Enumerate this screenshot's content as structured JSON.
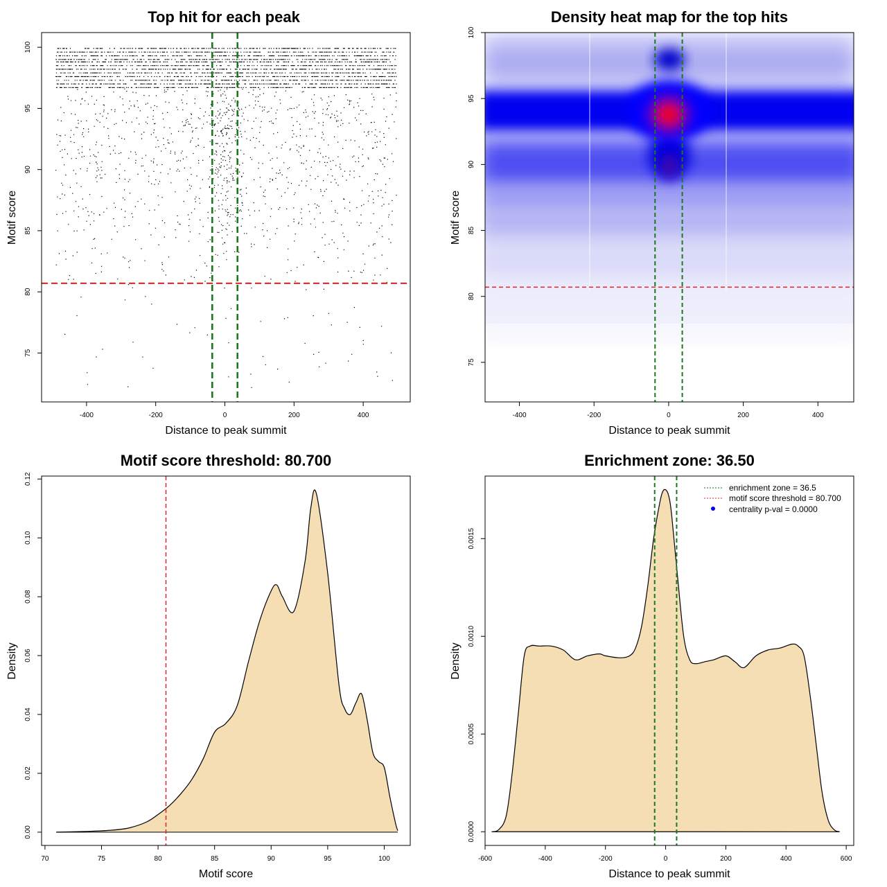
{
  "panels": {
    "scatter": {
      "title": "Top hit for each peak",
      "xlabel": "Distance to peak summit",
      "ylabel": "Motif score"
    },
    "heatmap": {
      "title": "Density heat map for the top hits",
      "xlabel": "Distance to peak summit",
      "ylabel": "Motif score"
    },
    "score_density": {
      "title": "Motif score threshold: 80.700",
      "xlabel": "Motif score",
      "ylabel": "Density"
    },
    "distance_density": {
      "title": "Enrichment zone: 36.50",
      "xlabel": "Distance to peak summit",
      "ylabel": "Density"
    }
  },
  "legend": {
    "zone": "enrichment zone = 36.5",
    "threshold": "motif score threshold = 80.700",
    "pval": "centrality p-val = 0.0000"
  },
  "colors": {
    "threshold": "#d62728",
    "zone": "#1a7a1a",
    "fill": "#f5deb3",
    "blue": "#0000ff",
    "red": "#ff0000"
  },
  "chart_data": [
    {
      "id": "scatter",
      "type": "scatter",
      "title": "Top hit for each peak",
      "xlabel": "Distance to peak summit",
      "ylabel": "Motif score",
      "xlim": [
        -530,
        536
      ],
      "ylim": [
        71,
        101.2
      ],
      "xticks": [
        -400,
        -200,
        0,
        200,
        400
      ],
      "yticks": [
        75,
        80,
        85,
        90,
        95,
        100
      ],
      "threshold": 80.7,
      "zone": [
        -36.5,
        36.5
      ],
      "x_range_points": [
        -490,
        495
      ],
      "score_levels": [
        99.9,
        99.6,
        99.3,
        99.0,
        98.8,
        98.5,
        98.2,
        97.9,
        97.6,
        97.3,
        97.0,
        96.7
      ]
    },
    {
      "id": "heatmap",
      "type": "heatmap",
      "title": "Density heat map for the top hits",
      "xlabel": "Distance to peak summit",
      "ylabel": "Motif score",
      "xlim": [
        -492,
        496
      ],
      "ylim": [
        72,
        100
      ],
      "xticks": [
        -400,
        -200,
        0,
        200,
        400
      ],
      "yticks": [
        75,
        80,
        85,
        90,
        95,
        100
      ],
      "threshold": 80.7,
      "zone": [
        -36.5,
        36.5
      ],
      "hotspot": {
        "x": 0,
        "y": 93.8
      }
    },
    {
      "id": "score_density",
      "type": "area",
      "title": "Motif score threshold: 80.700",
      "xlabel": "Motif score",
      "ylabel": "Density",
      "xlim": [
        69.7,
        102.3
      ],
      "ylim": [
        -0.0045,
        0.121
      ],
      "xticks": [
        70,
        75,
        80,
        85,
        90,
        95,
        100
      ],
      "yticks": [
        0.0,
        0.02,
        0.04,
        0.06,
        0.08,
        0.1,
        0.12
      ],
      "ytick_labels": [
        "0.00",
        "0.02",
        "0.04",
        "0.06",
        "0.08",
        "0.10",
        "0.12"
      ],
      "threshold": 80.7,
      "x": [
        71,
        74,
        76,
        77.5,
        79,
        80,
        81,
        82,
        83,
        84,
        85,
        86,
        87,
        88,
        89,
        90,
        90.5,
        91,
        92,
        93,
        93.5,
        94,
        95,
        96,
        96.5,
        97,
        97.5,
        98,
        98.5,
        99,
        99.5,
        100,
        100.5,
        101,
        101.2
      ],
      "y": [
        0,
        0.0003,
        0.0007,
        0.0015,
        0.0035,
        0.006,
        0.009,
        0.013,
        0.018,
        0.025,
        0.034,
        0.037,
        0.043,
        0.058,
        0.072,
        0.082,
        0.084,
        0.08,
        0.075,
        0.092,
        0.11,
        0.115,
        0.088,
        0.05,
        0.042,
        0.04,
        0.044,
        0.047,
        0.038,
        0.027,
        0.024,
        0.022,
        0.012,
        0.003,
        0.0005
      ]
    },
    {
      "id": "distance_density",
      "type": "area",
      "title": "Enrichment zone: 36.50",
      "xlabel": "Distance to peak summit",
      "ylabel": "Density",
      "xlim": [
        -600,
        625
      ],
      "ylim": [
        -7e-05,
        0.00182
      ],
      "xticks": [
        -600,
        -400,
        -200,
        0,
        200,
        400,
        600
      ],
      "yticks": [
        0.0,
        0.0005,
        0.001,
        0.0015
      ],
      "ytick_labels": [
        "0.0000",
        "0.0005",
        "0.0010",
        "0.0015"
      ],
      "zone": [
        -36.5,
        36.5
      ],
      "x": [
        -578,
        -555,
        -530,
        -510,
        -490,
        -470,
        -450,
        -420,
        -380,
        -340,
        -300,
        -260,
        -220,
        -200,
        -150,
        -120,
        -100,
        -80,
        -60,
        -40,
        -20,
        -10,
        0,
        10,
        20,
        40,
        60,
        80,
        100,
        130,
        160,
        200,
        230,
        260,
        300,
        340,
        380,
        420,
        440,
        460,
        480,
        500,
        520,
        540,
        560,
        578
      ],
      "y": [
        0,
        1e-05,
        8e-05,
        0.0003,
        0.0006,
        0.0009,
        0.00095,
        0.00095,
        0.00095,
        0.00093,
        0.00088,
        0.0009,
        0.00091,
        0.0009,
        0.00089,
        0.0009,
        0.00094,
        0.00105,
        0.00125,
        0.0015,
        0.00168,
        0.00174,
        0.00175,
        0.00172,
        0.00162,
        0.0013,
        0.001,
        0.00088,
        0.00086,
        0.00087,
        0.00088,
        0.0009,
        0.00087,
        0.00084,
        0.0009,
        0.00093,
        0.00094,
        0.00096,
        0.00095,
        0.0009,
        0.0007,
        0.00045,
        0.0002,
        6e-05,
        1e-05,
        0
      ]
    }
  ]
}
